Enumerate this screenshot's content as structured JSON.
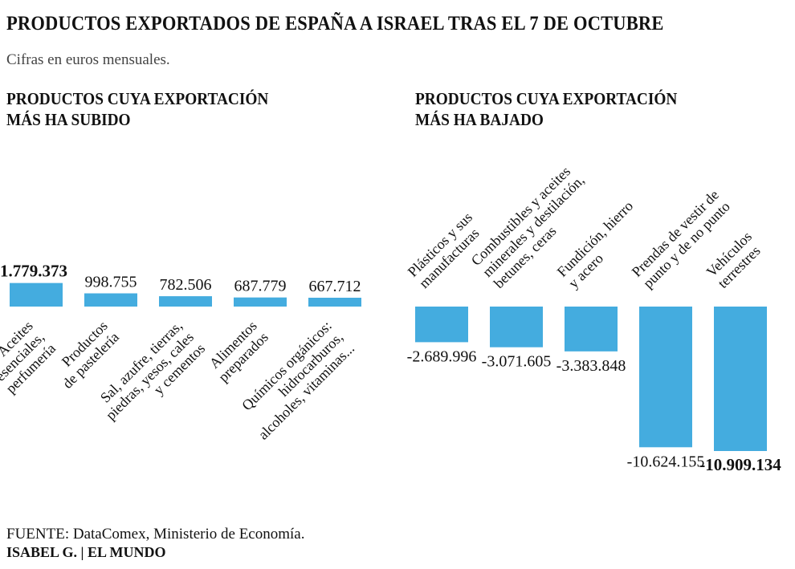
{
  "title": "PRODUCTOS EXPORTADOS DE ESPAÑA A ISRAEL TRAS EL 7 DE OCTUBRE",
  "subtitle": "Cifras en euros mensuales.",
  "panels": {
    "left_heading": [
      "PRODUCTOS CUYA EXPORTACIÓN",
      "MÁS HA SUBIDO"
    ],
    "right_heading": [
      "PRODUCTOS CUYA EXPORTACIÓN",
      "MÁS HA BAJADO"
    ]
  },
  "footer": {
    "source": "FUENTE: DataComex, Ministerio de Economía.",
    "credit": "ISABEL G. | EL MUNDO"
  },
  "colors": {
    "bar": "#44ACDF",
    "text": "#111111",
    "subtitle": "#444444"
  },
  "chart_data": [
    {
      "type": "bar",
      "title": "PRODUCTOS CUYA EXPORTACIÓN MÁS HA SUBIDO",
      "unit": "euros mensuales",
      "categories": [
        [
          "Aceites",
          "esenciales,",
          "perfumería"
        ],
        [
          "Productos",
          "de pastelería"
        ],
        [
          "Sal, azufre, tierras,",
          "piedras, yesos, cales",
          "y cementos"
        ],
        [
          "Alimentos",
          "preparados"
        ],
        [
          "Químicos orgánicos:",
          "hidrocarburos,",
          "alcoholes, vitaminas..."
        ]
      ],
      "values": [
        1779373,
        998755,
        782506,
        687779,
        667712
      ],
      "value_labels": [
        "1.779.373",
        "998.755",
        "782.506",
        "687.779",
        "667.712"
      ],
      "highlight_index": 0
    },
    {
      "type": "bar",
      "title": "PRODUCTOS CUYA EXPORTACIÓN MÁS HA BAJADO",
      "unit": "euros mensuales",
      "categories": [
        [
          "Plásticos y sus",
          "manufacturas"
        ],
        [
          "Combustibles y aceites",
          "minerales y destilación,",
          "betunes, ceras"
        ],
        [
          "Fundición, hierro",
          "y acero"
        ],
        [
          "Prendas de vestir de",
          "punto y de no punto"
        ],
        [
          "Vehículos",
          "terrestres"
        ]
      ],
      "values": [
        -2689996,
        -3071605,
        -3383848,
        -10624155,
        -10909134
      ],
      "value_labels": [
        "-2.689.996",
        "-3.071.605",
        "-3.383.848",
        "-10.624.155",
        "-10.909.134"
      ],
      "highlight_index": 4
    }
  ]
}
